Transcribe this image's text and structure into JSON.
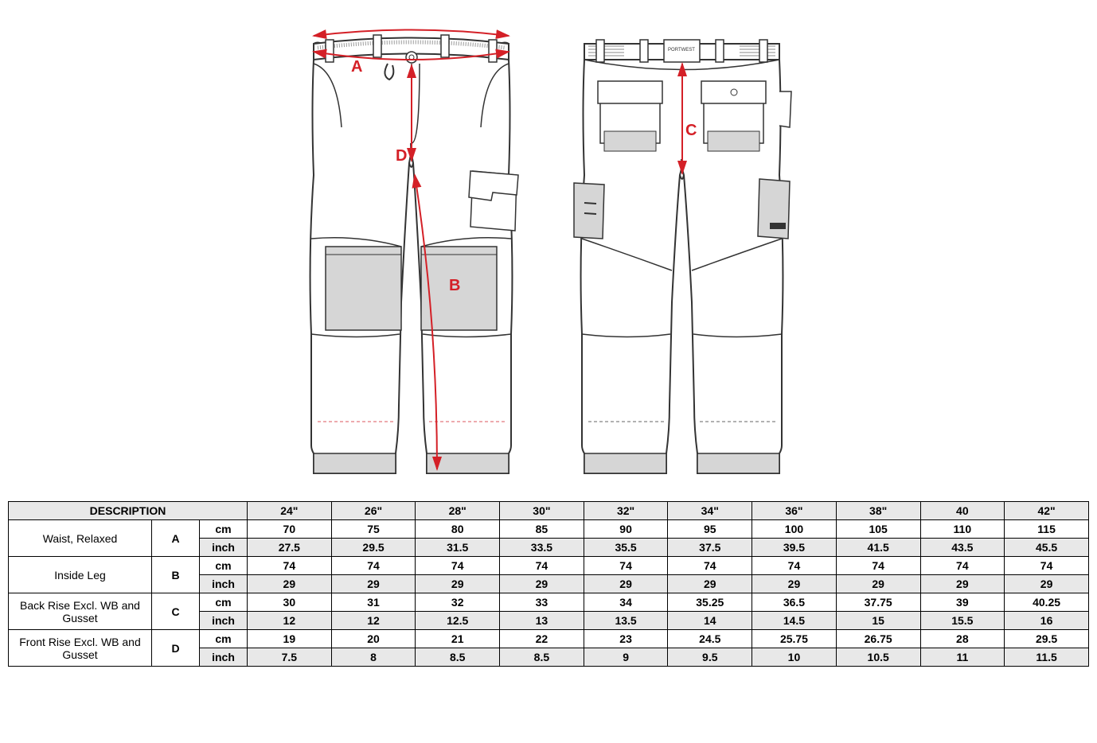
{
  "brand_label": "PORTWEST",
  "markers": {
    "A": "A",
    "B": "B",
    "C": "C",
    "D": "D"
  },
  "colors": {
    "line": "#333333",
    "fill_light": "#ffffff",
    "fill_shade": "#d6d6d6",
    "arrow": "#d42027",
    "dash": "#d42027"
  },
  "table": {
    "header_desc": "DESCRIPTION",
    "sizes": [
      "24\"",
      "26\"",
      "28\"",
      "30\"",
      "32\"",
      "34\"",
      "36\"",
      "38\"",
      "40",
      "42\""
    ],
    "rows": [
      {
        "label": "Waist, Relaxed",
        "letter": "A",
        "cm": [
          "70",
          "75",
          "80",
          "85",
          "90",
          "95",
          "100",
          "105",
          "110",
          "115"
        ],
        "inch": [
          "27.5",
          "29.5",
          "31.5",
          "33.5",
          "35.5",
          "37.5",
          "39.5",
          "41.5",
          "43.5",
          "45.5"
        ]
      },
      {
        "label": "Inside Leg",
        "letter": "B",
        "cm": [
          "74",
          "74",
          "74",
          "74",
          "74",
          "74",
          "74",
          "74",
          "74",
          "74"
        ],
        "inch": [
          "29",
          "29",
          "29",
          "29",
          "29",
          "29",
          "29",
          "29",
          "29",
          "29"
        ]
      },
      {
        "label": "Back Rise Excl. WB and Gusset",
        "letter": "C",
        "cm": [
          "30",
          "31",
          "32",
          "33",
          "34",
          "35.25",
          "36.5",
          "37.75",
          "39",
          "40.25"
        ],
        "inch": [
          "12",
          "12",
          "12.5",
          "13",
          "13.5",
          "14",
          "14.5",
          "15",
          "15.5",
          "16"
        ]
      },
      {
        "label": "Front Rise Excl. WB and Gusset",
        "letter": "D",
        "cm": [
          "19",
          "20",
          "21",
          "22",
          "23",
          "24.5",
          "25.75",
          "26.75",
          "28",
          "29.5"
        ],
        "inch": [
          "7.5",
          "8",
          "8.5",
          "8.5",
          "9",
          "9.5",
          "10",
          "10.5",
          "11",
          "11.5"
        ]
      }
    ]
  }
}
